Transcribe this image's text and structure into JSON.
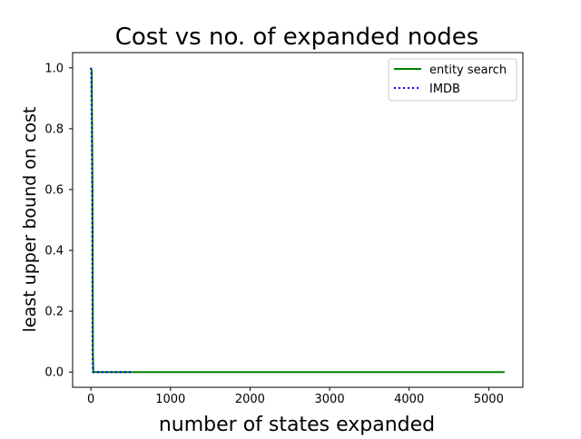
{
  "chart_data": {
    "type": "line",
    "title": "Cost vs no. of expanded nodes",
    "xlabel": "number of states expanded",
    "ylabel": "least upper bound on cost",
    "xlim": [
      -230,
      5430
    ],
    "ylim": [
      -0.05,
      1.05
    ],
    "xticks": [
      0,
      1000,
      2000,
      3000,
      4000,
      5000
    ],
    "yticks": [
      0.0,
      0.2,
      0.4,
      0.6,
      0.8,
      1.0
    ],
    "xtick_labels": [
      "0",
      "1000",
      "2000",
      "3000",
      "4000",
      "5000"
    ],
    "ytick_labels": [
      "0.0",
      "0.2",
      "0.4",
      "0.6",
      "0.8",
      "1.0"
    ],
    "grid": false,
    "legend_position": "top-right",
    "series": [
      {
        "name": "entity search",
        "color": "#008000",
        "style": "solid",
        "x": [
          0,
          10,
          20,
          25,
          30,
          5200
        ],
        "y": [
          1.0,
          0.99,
          0.6,
          0.07,
          0.0,
          0.0
        ]
      },
      {
        "name": "IMDB",
        "color": "#0000ff",
        "style": "dotted",
        "x": [
          0,
          5,
          15,
          20,
          25,
          500
        ],
        "y": [
          1.0,
          0.98,
          0.6,
          0.07,
          0.0,
          0.0
        ]
      }
    ]
  }
}
